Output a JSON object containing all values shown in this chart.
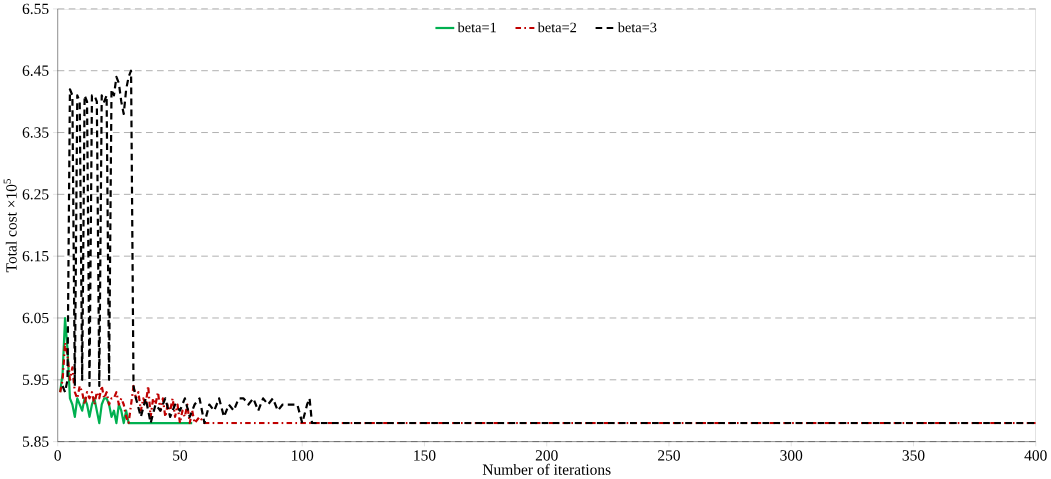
{
  "chart_data": {
    "type": "line",
    "xlabel": "Number of iterations",
    "ylabel": "Total cost  ×10$^{5}$",
    "xlim": [
      0,
      400
    ],
    "ylim": [
      5.85,
      6.55
    ],
    "xticks": [
      0,
      50,
      100,
      150,
      200,
      250,
      300,
      350,
      400
    ],
    "yticks": [
      {
        "value": 5.85,
        "label": "5.85"
      },
      {
        "value": 5.95,
        "label": "5.95"
      },
      {
        "value": 6.05,
        "label": "6.05"
      },
      {
        "value": 6.15,
        "label": "6.15"
      },
      {
        "value": 6.25,
        "label": "6.25"
      },
      {
        "value": 6.35,
        "label": "6.35"
      },
      {
        "value": 6.45,
        "label": "6.45"
      },
      {
        "value": 6.55,
        "label": "6.55"
      }
    ],
    "grid": "y",
    "legend": "top",
    "marker": "none",
    "series": [
      {
        "name": "beta=1",
        "color": "#00b050",
        "line_style": "solid",
        "x": [
          1,
          2,
          3,
          4,
          5,
          6,
          7,
          8,
          9,
          10,
          11,
          12,
          13,
          14,
          15,
          16,
          17,
          18,
          19,
          20,
          21,
          22,
          23,
          24,
          25,
          26,
          27,
          28,
          29,
          30,
          40,
          50,
          55
        ],
        "values": [
          5.93,
          5.96,
          6.05,
          6.0,
          5.92,
          5.91,
          5.89,
          5.92,
          5.91,
          5.9,
          5.92,
          5.91,
          5.89,
          5.91,
          5.92,
          5.9,
          5.88,
          5.91,
          5.92,
          5.92,
          5.91,
          5.89,
          5.9,
          5.88,
          5.91,
          5.9,
          5.88,
          5.9,
          5.88,
          5.88,
          5.88,
          5.88,
          5.88
        ]
      },
      {
        "name": "beta=2",
        "color": "#c00000",
        "line_style": "dashdotted",
        "x": [
          1,
          2,
          3,
          4,
          5,
          6,
          7,
          8,
          9,
          10,
          11,
          12,
          13,
          14,
          15,
          16,
          17,
          18,
          19,
          20,
          21,
          22,
          23,
          24,
          25,
          26,
          27,
          28,
          29,
          30,
          31,
          32,
          33,
          34,
          35,
          36,
          37,
          38,
          39,
          40,
          41,
          42,
          43,
          44,
          45,
          46,
          47,
          48,
          49,
          50,
          51,
          52,
          53,
          54,
          55,
          56,
          58,
          60,
          80,
          103,
          400
        ],
        "values": [
          5.93,
          5.95,
          6.01,
          5.99,
          5.95,
          5.97,
          5.93,
          5.92,
          5.94,
          5.93,
          5.91,
          5.93,
          5.92,
          5.93,
          5.91,
          5.93,
          5.92,
          5.94,
          5.92,
          5.93,
          5.91,
          5.92,
          5.92,
          5.93,
          5.91,
          5.92,
          5.91,
          5.89,
          5.88,
          5.91,
          5.94,
          5.92,
          5.93,
          5.9,
          5.92,
          5.91,
          5.94,
          5.89,
          5.92,
          5.91,
          5.93,
          5.9,
          5.92,
          5.89,
          5.91,
          5.9,
          5.92,
          5.89,
          5.91,
          5.88,
          5.9,
          5.89,
          5.91,
          5.88,
          5.9,
          5.88,
          5.89,
          5.88,
          5.88,
          5.88,
          5.88
        ]
      },
      {
        "name": "beta=3",
        "color": "#000000",
        "line_style": "dashed",
        "x": [
          2,
          3,
          4,
          5,
          6,
          7,
          8,
          9,
          10,
          11,
          12,
          13,
          14,
          15,
          16,
          17,
          18,
          19,
          20,
          21,
          22,
          23,
          24,
          25,
          26,
          27,
          28,
          29,
          30,
          31,
          32,
          34,
          36,
          38,
          40,
          42,
          44,
          46,
          48,
          50,
          52,
          54,
          56,
          58,
          60,
          62,
          64,
          66,
          68,
          70,
          72,
          74,
          76,
          78,
          80,
          82,
          84,
          86,
          88,
          90,
          92,
          94,
          96,
          98,
          100,
          102,
          103,
          104,
          400
        ],
        "values": [
          5.94,
          5.93,
          5.95,
          6.42,
          6.41,
          5.94,
          6.41,
          6.4,
          5.95,
          6.41,
          6.4,
          5.94,
          6.41,
          6.41,
          6.4,
          5.94,
          6.41,
          6.4,
          6.41,
          5.95,
          6.42,
          6.41,
          6.44,
          6.43,
          6.4,
          6.38,
          6.42,
          6.44,
          6.45,
          5.94,
          5.92,
          5.89,
          5.92,
          5.88,
          5.91,
          5.9,
          5.92,
          5.89,
          5.91,
          5.9,
          5.92,
          5.89,
          5.91,
          5.92,
          5.88,
          5.91,
          5.9,
          5.92,
          5.89,
          5.91,
          5.9,
          5.92,
          5.92,
          5.91,
          5.92,
          5.9,
          5.92,
          5.91,
          5.92,
          5.9,
          5.91,
          5.91,
          5.91,
          5.91,
          5.88,
          5.91,
          5.92,
          5.88,
          5.88
        ]
      }
    ]
  }
}
